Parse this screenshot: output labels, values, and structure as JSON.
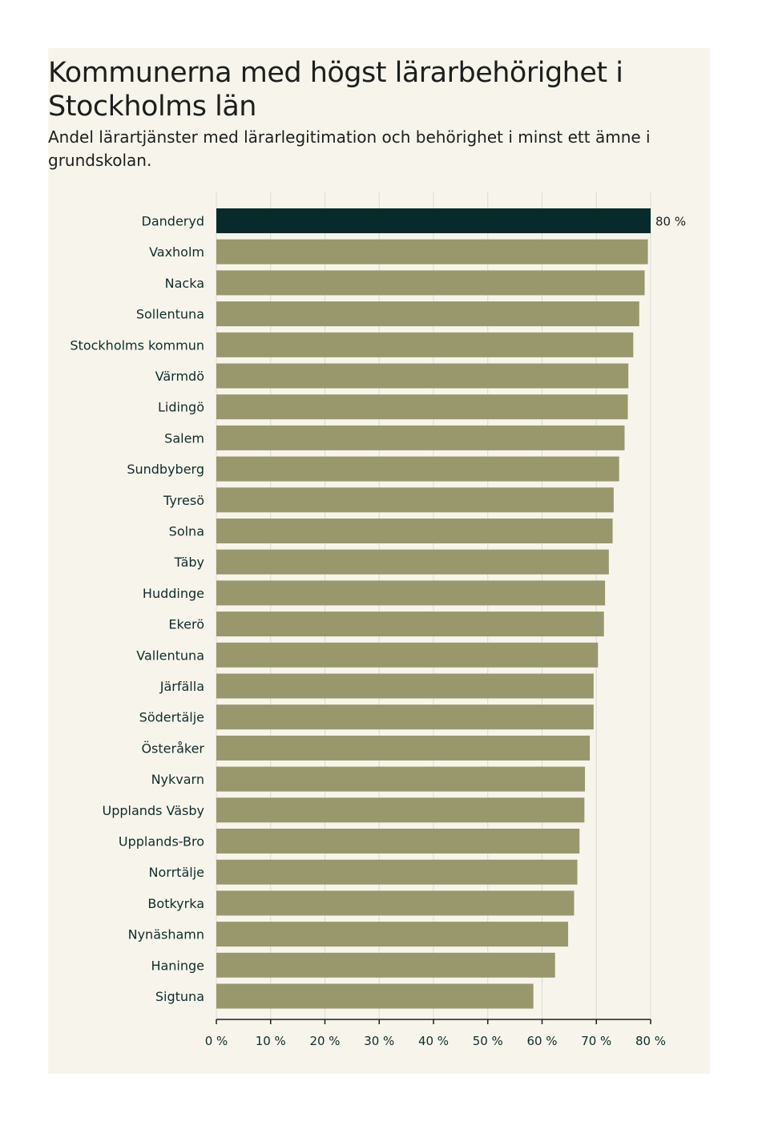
{
  "chart_data": {
    "type": "bar",
    "orientation": "horizontal",
    "title": "Kommunerna med högst lärarbehörighet i Stockholms län",
    "subtitle": "Andel lärartjänster med lärarlegitimation och behörighet i minst ett ämne i grundskolan.",
    "categories": [
      "Danderyd",
      "Vaxholm",
      "Nacka",
      "Sollentuna",
      "Stockholms kommun",
      "Värmdö",
      "Lidingö",
      "Salem",
      "Sundbyberg",
      "Tyresö",
      "Solna",
      "Täby",
      "Huddinge",
      "Ekerö",
      "Vallentuna",
      "Järfälla",
      "Södertälje",
      "Österåker",
      "Nykvarn",
      "Upplands Väsby",
      "Upplands-Bro",
      "Norrtälje",
      "Botkyrka",
      "Nynäshamn",
      "Haninge",
      "Sigtuna"
    ],
    "values": [
      80,
      79.5,
      78.9,
      77.9,
      76.8,
      75.9,
      75.8,
      75.2,
      74.2,
      73.2,
      73.0,
      72.3,
      71.6,
      71.4,
      70.3,
      69.5,
      69.5,
      68.8,
      67.9,
      67.8,
      66.9,
      66.5,
      65.9,
      64.8,
      62.4,
      58.4
    ],
    "value_labels": [
      "80 %"
    ],
    "xlim": [
      0,
      80
    ],
    "xticks": [
      0,
      10,
      20,
      30,
      40,
      50,
      60,
      70,
      80
    ],
    "tick_labels": [
      "0 %",
      "10 %",
      "20 %",
      "30 %",
      "40 %",
      "50 %",
      "60 %",
      "70 %",
      "80 %"
    ],
    "highlight_index": 0,
    "grid": true,
    "colors": {
      "highlight": "#062b2a",
      "bar": "#99976c",
      "grid": "#dcdbd0",
      "axis": "#1c1f1e",
      "background": "#f7f5eb"
    }
  }
}
